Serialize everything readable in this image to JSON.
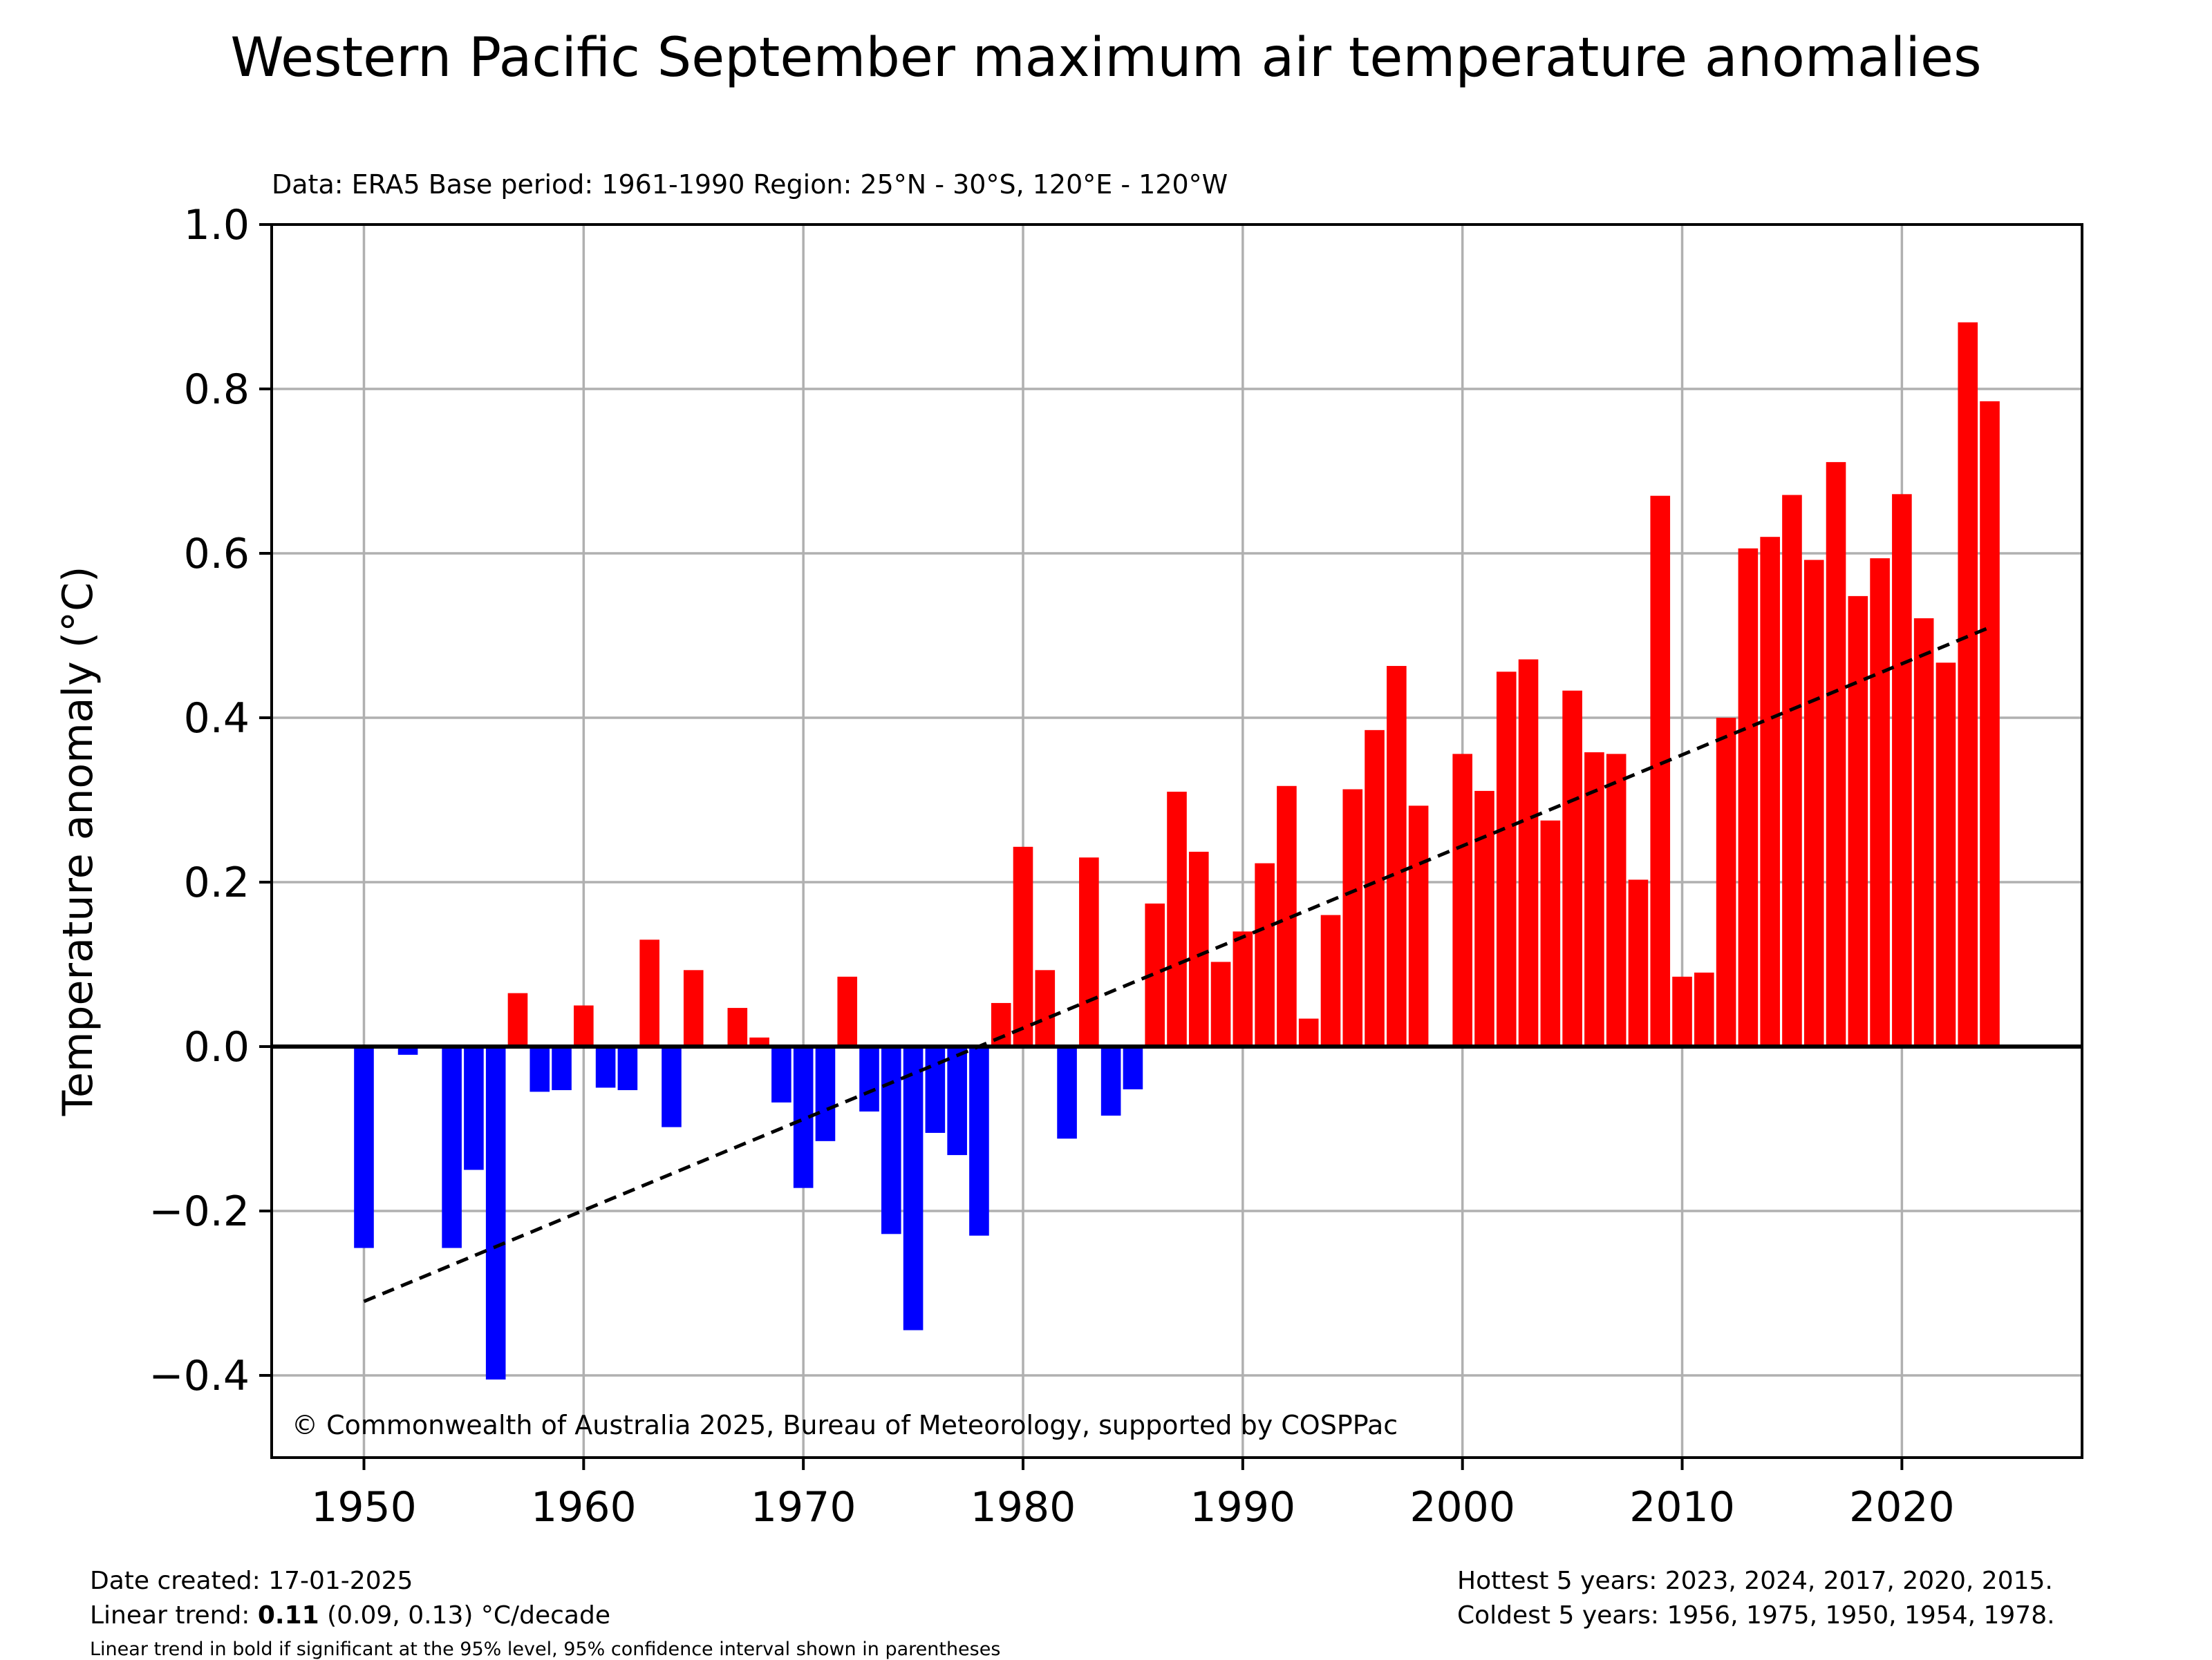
{
  "chart_data": {
    "type": "bar",
    "title": "Western Pacific September maximum air temperature anomalies",
    "subtitle": "Data: ERA5  Base period: 1961-1990  Region: 25°N - 30°S, 120°E - 120°W",
    "ylabel": "Temperature anomaly (°C)",
    "xlabel": "",
    "xlim": [
      1945.8,
      2028.2
    ],
    "ylim": [
      -0.5,
      1.0
    ],
    "xticks": [
      1950,
      1960,
      1970,
      1980,
      1990,
      2000,
      2010,
      2020
    ],
    "yticks": [
      -0.4,
      -0.2,
      0.0,
      0.2,
      0.4,
      0.6,
      0.8,
      1.0
    ],
    "ytick_labels": [
      "−0.4",
      "−0.2",
      "0.0",
      "0.2",
      "0.4",
      "0.6",
      "0.8",
      "1.0"
    ],
    "grid": true,
    "positive_color": "#ff0000",
    "negative_color": "#0000ff",
    "trend_color": "#000000",
    "years": [
      1950,
      1951,
      1952,
      1953,
      1954,
      1955,
      1956,
      1957,
      1958,
      1959,
      1960,
      1961,
      1962,
      1963,
      1964,
      1965,
      1966,
      1967,
      1968,
      1969,
      1970,
      1971,
      1972,
      1973,
      1974,
      1975,
      1976,
      1977,
      1978,
      1979,
      1980,
      1981,
      1982,
      1983,
      1984,
      1985,
      1986,
      1987,
      1988,
      1989,
      1990,
      1991,
      1992,
      1993,
      1994,
      1995,
      1996,
      1997,
      1998,
      1999,
      2000,
      2001,
      2002,
      2003,
      2004,
      2005,
      2006,
      2007,
      2008,
      2009,
      2010,
      2011,
      2012,
      2013,
      2014,
      2015,
      2016,
      2017,
      2018,
      2019,
      2020,
      2021,
      2022,
      2023,
      2024
    ],
    "values": [
      -0.245,
      0.0,
      -0.01,
      0.0,
      -0.245,
      -0.15,
      -0.405,
      0.065,
      -0.055,
      -0.053,
      0.05,
      -0.05,
      -0.053,
      0.13,
      -0.098,
      0.093,
      0.0,
      0.047,
      0.011,
      -0.068,
      -0.172,
      -0.115,
      0.085,
      -0.079,
      -0.228,
      -0.345,
      -0.105,
      -0.132,
      -0.23,
      0.053,
      0.243,
      0.093,
      -0.112,
      0.23,
      -0.084,
      -0.052,
      0.174,
      0.31,
      0.237,
      0.103,
      0.14,
      0.223,
      0.317,
      0.034,
      0.16,
      0.313,
      0.385,
      0.463,
      0.293,
      0.0,
      0.356,
      0.311,
      0.456,
      0.471,
      0.275,
      0.433,
      0.358,
      0.356,
      0.203,
      0.67,
      0.085,
      0.09,
      0.4,
      0.606,
      0.62,
      0.671,
      0.592,
      0.711,
      0.548,
      0.594,
      0.672,
      0.521,
      0.467,
      0.881,
      0.785
    ],
    "trend": {
      "x": [
        1950,
        2024
      ],
      "y": [
        -0.31,
        0.51
      ]
    },
    "copyright": "© Commonwealth of Australia 2025, Bureau of Meteorology, supported by COSPPac"
  },
  "footer": {
    "date_created": "Date created: 17-01-2025",
    "trend_prefix": "Linear trend: ",
    "trend_value": "0.11",
    "trend_suffix": " (0.09, 0.13) °C/decade",
    "note": "Linear trend in bold if significant at the 95% level, 95% confidence interval shown in parentheses",
    "hottest": "Hottest 5 years: 2023, 2024, 2017, 2020, 2015.",
    "coldest": "Coldest 5 years: 1956, 1975, 1950, 1954, 1978."
  }
}
